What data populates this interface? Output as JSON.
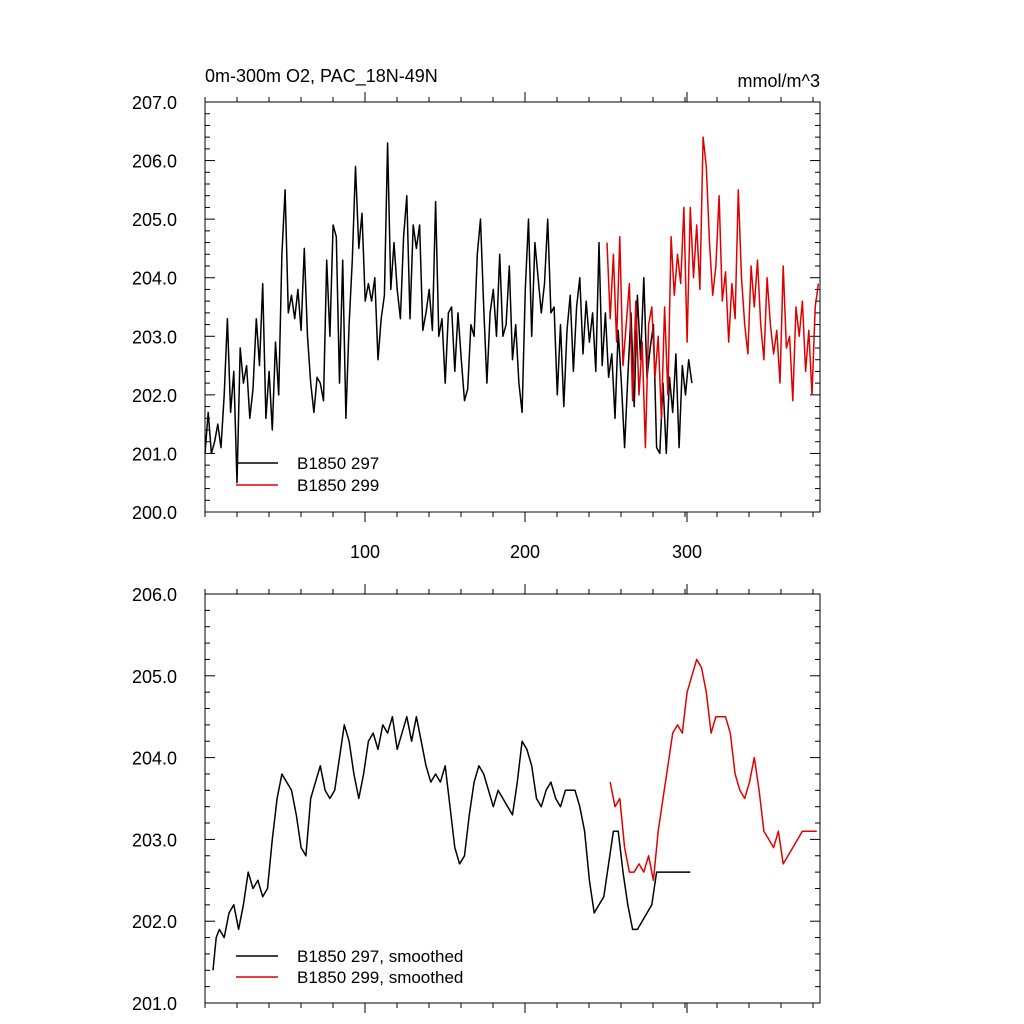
{
  "chart_data": [
    {
      "type": "line",
      "title": "0m-300m O2, PAC_18N-49N",
      "units": "mmol/m^3",
      "xlim": [
        1,
        385
      ],
      "ylim": [
        200,
        207
      ],
      "yticks": [
        "200.0",
        "201.0",
        "202.0",
        "203.0",
        "204.0",
        "205.0",
        "206.0",
        "207.0"
      ],
      "xticks": [
        "100",
        "200",
        "300"
      ],
      "legend_position": "bottom-left",
      "series": [
        {
          "name": "B1850 297",
          "color": "#000000",
          "x": [
            1,
            3,
            5,
            7,
            9,
            11,
            13,
            15,
            17,
            19,
            21,
            23,
            25,
            27,
            29,
            31,
            33,
            35,
            37,
            39,
            41,
            43,
            45,
            47,
            49,
            51,
            53,
            55,
            57,
            59,
            61,
            63,
            65,
            67,
            69,
            71,
            73,
            75,
            77,
            79,
            81,
            83,
            85,
            87,
            89,
            91,
            93,
            95,
            97,
            99,
            101,
            103,
            105,
            107,
            109,
            111,
            113,
            115,
            117,
            119,
            121,
            123,
            125,
            127,
            129,
            131,
            133,
            135,
            137,
            139,
            141,
            143,
            145,
            147,
            149,
            151,
            153,
            155,
            157,
            159,
            161,
            163,
            165,
            167,
            169,
            171,
            173,
            175,
            177,
            179,
            181,
            183,
            185,
            187,
            189,
            191,
            193,
            195,
            197,
            199,
            201,
            203,
            205,
            207,
            209,
            211,
            213,
            215,
            217,
            219,
            221,
            223,
            225,
            227,
            229,
            231,
            233,
            235,
            237,
            239,
            241,
            243,
            245,
            247,
            249,
            251,
            253,
            255,
            257,
            259,
            261,
            263,
            265,
            267,
            269,
            271,
            273,
            275,
            277,
            279,
            281,
            283,
            285,
            287,
            289,
            291,
            293,
            295,
            297,
            299,
            301,
            303,
            305
          ],
          "y": [
            201.0,
            201.7,
            201.0,
            201.2,
            201.5,
            201.1,
            202.0,
            203.3,
            201.7,
            202.4,
            200.5,
            202.8,
            202.2,
            202.5,
            201.6,
            202.1,
            203.3,
            202.5,
            203.9,
            201.6,
            202.4,
            201.4,
            202.9,
            202.0,
            204.4,
            205.5,
            203.4,
            203.7,
            203.3,
            203.8,
            203.1,
            204.5,
            203.0,
            202.2,
            201.7,
            202.3,
            202.2,
            201.9,
            204.3,
            203.0,
            204.9,
            204.7,
            202.2,
            204.3,
            201.6,
            203.2,
            204.3,
            205.9,
            204.5,
            205.1,
            203.6,
            203.9,
            203.6,
            204.0,
            202.6,
            203.3,
            203.7,
            206.3,
            203.8,
            204.6,
            203.8,
            203.3,
            204.7,
            205.4,
            203.3,
            204.9,
            204.5,
            204.9,
            203.1,
            203.4,
            203.8,
            203.1,
            205.3,
            203.0,
            203.3,
            202.2,
            203.4,
            203.5,
            202.4,
            203.4,
            202.6,
            201.9,
            202.1,
            203.2,
            203.0,
            204.4,
            205.0,
            203.5,
            202.2,
            203.4,
            203.8,
            203.0,
            204.4,
            203.0,
            203.2,
            204.2,
            202.6,
            203.2,
            202.2,
            201.7,
            203.8,
            205.0,
            203.0,
            204.6,
            204.0,
            203.4,
            203.9,
            205.0,
            203.4,
            203.5,
            202.0,
            203.2,
            201.8,
            203.1,
            203.7,
            202.4,
            203.5,
            204.0,
            202.7,
            203.6,
            202.9,
            203.4,
            202.4,
            204.6,
            202.5,
            203.4,
            202.3,
            202.7,
            201.6,
            203.1,
            202.2,
            201.1,
            202.3,
            203.4,
            201.8,
            203.7,
            202.6,
            204.0,
            202.3,
            202.8,
            203.2,
            201.1,
            201.0,
            202.2,
            201.0,
            202.3,
            201.7,
            202.7,
            201.1,
            202.5,
            202.0,
            202.6,
            202.2
          ]
        },
        {
          "name": "B1850 299",
          "color": "#e00000",
          "x": [
            252,
            254,
            256,
            258,
            260,
            262,
            264,
            266,
            268,
            270,
            272,
            274,
            276,
            278,
            280,
            282,
            284,
            286,
            288,
            290,
            292,
            294,
            296,
            298,
            300,
            302,
            304,
            306,
            308,
            310,
            312,
            314,
            316,
            318,
            320,
            322,
            324,
            326,
            328,
            330,
            332,
            334,
            336,
            338,
            340,
            342,
            344,
            346,
            348,
            350,
            352,
            354,
            356,
            358,
            360,
            362,
            364,
            366,
            368,
            370,
            372,
            374,
            376,
            378,
            380,
            382,
            384
          ],
          "y": [
            204.6,
            203.3,
            204.4,
            202.9,
            204.7,
            202.5,
            203.2,
            203.9,
            201.9,
            203.6,
            202.0,
            202.9,
            201.1,
            203.2,
            203.5,
            202.3,
            203.0,
            201.6,
            203.5,
            202.0,
            204.7,
            203.7,
            204.4,
            203.9,
            205.2,
            202.9,
            205.2,
            204.0,
            204.9,
            203.8,
            206.4,
            205.9,
            204.6,
            203.7,
            204.2,
            205.4,
            203.6,
            204.1,
            202.9,
            203.9,
            203.3,
            205.5,
            204.0,
            203.2,
            202.7,
            204.2,
            203.5,
            204.3,
            203.2,
            202.6,
            204.0,
            203.2,
            202.7,
            203.1,
            202.2,
            204.2,
            202.8,
            203.0,
            201.9,
            203.5,
            203.0,
            203.6,
            202.4,
            203.1,
            202.0,
            203.5,
            203.9
          ]
        }
      ]
    },
    {
      "type": "line",
      "xlim": [
        1,
        385
      ],
      "ylim": [
        201,
        206
      ],
      "yticks": [
        "201.0",
        "202.0",
        "203.0",
        "204.0",
        "205.0",
        "206.0"
      ],
      "legend_position": "bottom-left",
      "series": [
        {
          "name": "B1850 297, smoothed",
          "color": "#000000",
          "x": [
            6,
            8,
            10,
            13,
            16,
            19,
            22,
            25,
            28,
            31,
            34,
            37,
            40,
            43,
            46,
            49,
            52,
            55,
            58,
            61,
            64,
            67,
            70,
            73,
            76,
            79,
            82,
            85,
            88,
            91,
            94,
            97,
            100,
            103,
            106,
            109,
            112,
            115,
            118,
            121,
            124,
            127,
            130,
            133,
            136,
            139,
            142,
            145,
            148,
            151,
            154,
            157,
            160,
            163,
            166,
            169,
            172,
            175,
            178,
            181,
            184,
            187,
            190,
            193,
            196,
            199,
            202,
            205,
            208,
            211,
            214,
            217,
            220,
            223,
            226,
            229,
            232,
            235,
            238,
            241,
            244,
            247,
            250,
            253,
            256,
            259,
            262,
            265,
            268,
            271,
            274,
            277,
            280,
            283,
            286,
            289,
            292,
            295,
            298,
            301,
            304
          ],
          "y": [
            201.4,
            201.8,
            201.9,
            201.8,
            202.1,
            202.2,
            201.9,
            202.2,
            202.6,
            202.4,
            202.5,
            202.3,
            202.4,
            203.0,
            203.5,
            203.8,
            203.7,
            203.6,
            203.3,
            202.9,
            202.8,
            203.5,
            203.7,
            203.9,
            203.6,
            203.5,
            203.6,
            204.0,
            204.4,
            204.2,
            203.8,
            203.5,
            203.8,
            204.2,
            204.3,
            204.1,
            204.4,
            204.3,
            204.5,
            204.1,
            204.3,
            204.5,
            204.2,
            204.5,
            204.2,
            203.9,
            203.7,
            203.8,
            203.7,
            203.9,
            203.4,
            202.9,
            202.7,
            202.8,
            203.3,
            203.7,
            203.9,
            203.8,
            203.6,
            203.4,
            203.6,
            203.5,
            203.4,
            203.3,
            203.7,
            204.2,
            204.1,
            203.9,
            203.5,
            203.4,
            203.6,
            203.7,
            203.5,
            203.4,
            203.6,
            203.6,
            203.6,
            203.4,
            203.1,
            202.5,
            202.1,
            202.2,
            202.3,
            202.7,
            203.1,
            203.1,
            202.6,
            202.2,
            201.9,
            201.9,
            202.0,
            202.1,
            202.2,
            202.6,
            202.6,
            202.6,
            202.6,
            202.6,
            202.6,
            202.6,
            202.6
          ]
        },
        {
          "name": "B1850 299, smoothed",
          "color": "#e00000",
          "x": [
            254,
            257,
            260,
            263,
            266,
            269,
            272,
            275,
            278,
            281,
            284,
            287,
            290,
            293,
            296,
            299,
            302,
            305,
            308,
            311,
            314,
            317,
            320,
            323,
            326,
            329,
            332,
            335,
            338,
            341,
            344,
            347,
            350,
            353,
            356,
            359,
            362,
            365,
            368,
            371,
            374,
            377,
            380,
            383
          ],
          "y": [
            203.7,
            203.4,
            203.5,
            202.9,
            202.6,
            202.6,
            202.7,
            202.6,
            202.8,
            202.5,
            203.1,
            203.5,
            203.9,
            204.3,
            204.4,
            204.3,
            204.8,
            205.0,
            205.2,
            205.1,
            204.8,
            204.3,
            204.5,
            204.5,
            204.5,
            204.3,
            203.8,
            203.6,
            203.5,
            203.7,
            204.0,
            203.6,
            203.1,
            203.0,
            202.9,
            203.1,
            202.7,
            202.8,
            202.9,
            203.0,
            203.1,
            203.1,
            203.1,
            203.1
          ]
        }
      ]
    }
  ]
}
